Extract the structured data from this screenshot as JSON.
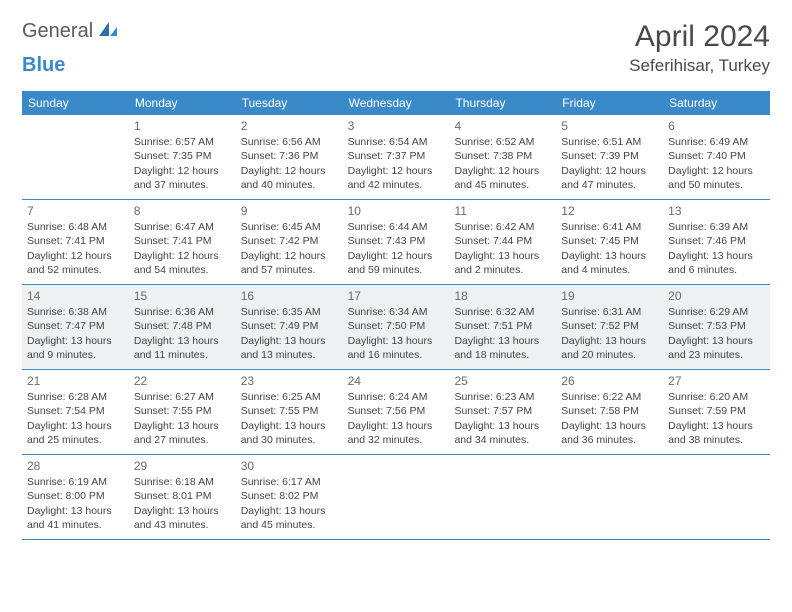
{
  "logo": {
    "general": "General",
    "blue": "Blue"
  },
  "title": "April 2024",
  "location": "Seferihisar, Turkey",
  "colors": {
    "header_bg": "#3a8ac9",
    "header_fg": "#ffffff",
    "shaded_bg": "#eef0f1",
    "border": "#3a8ac9",
    "text": "#444444",
    "title_color": "#4a4a4a"
  },
  "dow": [
    "Sunday",
    "Monday",
    "Tuesday",
    "Wednesday",
    "Thursday",
    "Friday",
    "Saturday"
  ],
  "shaded_row": 2,
  "weeks": [
    [
      null,
      {
        "n": "1",
        "sr": "Sunrise: 6:57 AM",
        "ss": "Sunset: 7:35 PM",
        "d1": "Daylight: 12 hours",
        "d2": "and 37 minutes."
      },
      {
        "n": "2",
        "sr": "Sunrise: 6:56 AM",
        "ss": "Sunset: 7:36 PM",
        "d1": "Daylight: 12 hours",
        "d2": "and 40 minutes."
      },
      {
        "n": "3",
        "sr": "Sunrise: 6:54 AM",
        "ss": "Sunset: 7:37 PM",
        "d1": "Daylight: 12 hours",
        "d2": "and 42 minutes."
      },
      {
        "n": "4",
        "sr": "Sunrise: 6:52 AM",
        "ss": "Sunset: 7:38 PM",
        "d1": "Daylight: 12 hours",
        "d2": "and 45 minutes."
      },
      {
        "n": "5",
        "sr": "Sunrise: 6:51 AM",
        "ss": "Sunset: 7:39 PM",
        "d1": "Daylight: 12 hours",
        "d2": "and 47 minutes."
      },
      {
        "n": "6",
        "sr": "Sunrise: 6:49 AM",
        "ss": "Sunset: 7:40 PM",
        "d1": "Daylight: 12 hours",
        "d2": "and 50 minutes."
      }
    ],
    [
      {
        "n": "7",
        "sr": "Sunrise: 6:48 AM",
        "ss": "Sunset: 7:41 PM",
        "d1": "Daylight: 12 hours",
        "d2": "and 52 minutes."
      },
      {
        "n": "8",
        "sr": "Sunrise: 6:47 AM",
        "ss": "Sunset: 7:41 PM",
        "d1": "Daylight: 12 hours",
        "d2": "and 54 minutes."
      },
      {
        "n": "9",
        "sr": "Sunrise: 6:45 AM",
        "ss": "Sunset: 7:42 PM",
        "d1": "Daylight: 12 hours",
        "d2": "and 57 minutes."
      },
      {
        "n": "10",
        "sr": "Sunrise: 6:44 AM",
        "ss": "Sunset: 7:43 PM",
        "d1": "Daylight: 12 hours",
        "d2": "and 59 minutes."
      },
      {
        "n": "11",
        "sr": "Sunrise: 6:42 AM",
        "ss": "Sunset: 7:44 PM",
        "d1": "Daylight: 13 hours",
        "d2": "and 2 minutes."
      },
      {
        "n": "12",
        "sr": "Sunrise: 6:41 AM",
        "ss": "Sunset: 7:45 PM",
        "d1": "Daylight: 13 hours",
        "d2": "and 4 minutes."
      },
      {
        "n": "13",
        "sr": "Sunrise: 6:39 AM",
        "ss": "Sunset: 7:46 PM",
        "d1": "Daylight: 13 hours",
        "d2": "and 6 minutes."
      }
    ],
    [
      {
        "n": "14",
        "sr": "Sunrise: 6:38 AM",
        "ss": "Sunset: 7:47 PM",
        "d1": "Daylight: 13 hours",
        "d2": "and 9 minutes."
      },
      {
        "n": "15",
        "sr": "Sunrise: 6:36 AM",
        "ss": "Sunset: 7:48 PM",
        "d1": "Daylight: 13 hours",
        "d2": "and 11 minutes."
      },
      {
        "n": "16",
        "sr": "Sunrise: 6:35 AM",
        "ss": "Sunset: 7:49 PM",
        "d1": "Daylight: 13 hours",
        "d2": "and 13 minutes."
      },
      {
        "n": "17",
        "sr": "Sunrise: 6:34 AM",
        "ss": "Sunset: 7:50 PM",
        "d1": "Daylight: 13 hours",
        "d2": "and 16 minutes."
      },
      {
        "n": "18",
        "sr": "Sunrise: 6:32 AM",
        "ss": "Sunset: 7:51 PM",
        "d1": "Daylight: 13 hours",
        "d2": "and 18 minutes."
      },
      {
        "n": "19",
        "sr": "Sunrise: 6:31 AM",
        "ss": "Sunset: 7:52 PM",
        "d1": "Daylight: 13 hours",
        "d2": "and 20 minutes."
      },
      {
        "n": "20",
        "sr": "Sunrise: 6:29 AM",
        "ss": "Sunset: 7:53 PM",
        "d1": "Daylight: 13 hours",
        "d2": "and 23 minutes."
      }
    ],
    [
      {
        "n": "21",
        "sr": "Sunrise: 6:28 AM",
        "ss": "Sunset: 7:54 PM",
        "d1": "Daylight: 13 hours",
        "d2": "and 25 minutes."
      },
      {
        "n": "22",
        "sr": "Sunrise: 6:27 AM",
        "ss": "Sunset: 7:55 PM",
        "d1": "Daylight: 13 hours",
        "d2": "and 27 minutes."
      },
      {
        "n": "23",
        "sr": "Sunrise: 6:25 AM",
        "ss": "Sunset: 7:55 PM",
        "d1": "Daylight: 13 hours",
        "d2": "and 30 minutes."
      },
      {
        "n": "24",
        "sr": "Sunrise: 6:24 AM",
        "ss": "Sunset: 7:56 PM",
        "d1": "Daylight: 13 hours",
        "d2": "and 32 minutes."
      },
      {
        "n": "25",
        "sr": "Sunrise: 6:23 AM",
        "ss": "Sunset: 7:57 PM",
        "d1": "Daylight: 13 hours",
        "d2": "and 34 minutes."
      },
      {
        "n": "26",
        "sr": "Sunrise: 6:22 AM",
        "ss": "Sunset: 7:58 PM",
        "d1": "Daylight: 13 hours",
        "d2": "and 36 minutes."
      },
      {
        "n": "27",
        "sr": "Sunrise: 6:20 AM",
        "ss": "Sunset: 7:59 PM",
        "d1": "Daylight: 13 hours",
        "d2": "and 38 minutes."
      }
    ],
    [
      {
        "n": "28",
        "sr": "Sunrise: 6:19 AM",
        "ss": "Sunset: 8:00 PM",
        "d1": "Daylight: 13 hours",
        "d2": "and 41 minutes."
      },
      {
        "n": "29",
        "sr": "Sunrise: 6:18 AM",
        "ss": "Sunset: 8:01 PM",
        "d1": "Daylight: 13 hours",
        "d2": "and 43 minutes."
      },
      {
        "n": "30",
        "sr": "Sunrise: 6:17 AM",
        "ss": "Sunset: 8:02 PM",
        "d1": "Daylight: 13 hours",
        "d2": "and 45 minutes."
      },
      null,
      null,
      null,
      null
    ]
  ]
}
